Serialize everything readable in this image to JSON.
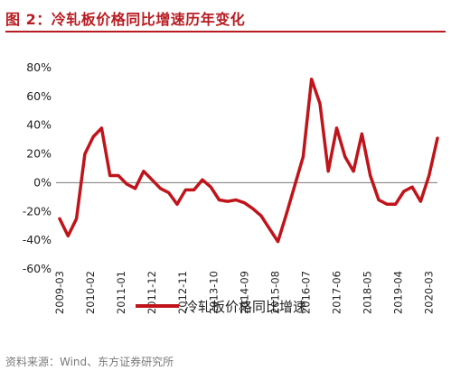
{
  "title": "图 2：冷轧板价格同比增速历年变化",
  "source": "资料来源：Wind、东方证券研究所",
  "colors": {
    "accent": "#b81c22",
    "series": "#c0141b"
  },
  "chart_data": {
    "type": "line",
    "title": "",
    "xlabel": "",
    "ylabel": "",
    "ylim": [
      -60,
      80
    ],
    "yticks": [
      80,
      60,
      40,
      20,
      0,
      -20,
      -40,
      -60
    ],
    "yunit": "%",
    "grid": false,
    "legend_position": "bottom",
    "x_ticks": [
      "2009-03",
      "2010-02",
      "2011-01",
      "2011-12",
      "2012-11",
      "2013-10",
      "2014-09",
      "2015-08",
      "2016-07",
      "2017-06",
      "2018-05",
      "2019-04",
      "2020-03"
    ],
    "series": [
      {
        "name": "冷轧板价格同比增速",
        "x": [
          "2009-03",
          "2009-06",
          "2009-09",
          "2009-12",
          "2010-03",
          "2010-06",
          "2010-09",
          "2010-12",
          "2011-03",
          "2011-06",
          "2011-09",
          "2011-12",
          "2012-03",
          "2012-06",
          "2012-09",
          "2012-12",
          "2013-03",
          "2013-06",
          "2013-09",
          "2013-12",
          "2014-03",
          "2014-06",
          "2014-09",
          "2014-12",
          "2015-03",
          "2015-06",
          "2015-09",
          "2015-12",
          "2016-03",
          "2016-06",
          "2016-09",
          "2016-12",
          "2017-03",
          "2017-06",
          "2017-09",
          "2017-12",
          "2018-03",
          "2018-06",
          "2018-09",
          "2018-12",
          "2019-03",
          "2019-06",
          "2019-09",
          "2019-12",
          "2020-03",
          "2020-06"
        ],
        "values": [
          -25,
          -37,
          -25,
          20,
          32,
          38,
          5,
          5,
          -1,
          -4,
          8,
          2,
          -4,
          -7,
          -15,
          -5,
          -5,
          2,
          -3,
          -12,
          -13,
          -12,
          -14,
          -18,
          -23,
          -32,
          -41,
          -22,
          -2,
          18,
          72,
          55,
          8,
          38,
          18,
          8,
          34,
          5,
          -12,
          -15,
          -15,
          -6,
          -3,
          -13,
          5,
          31
        ]
      }
    ]
  }
}
